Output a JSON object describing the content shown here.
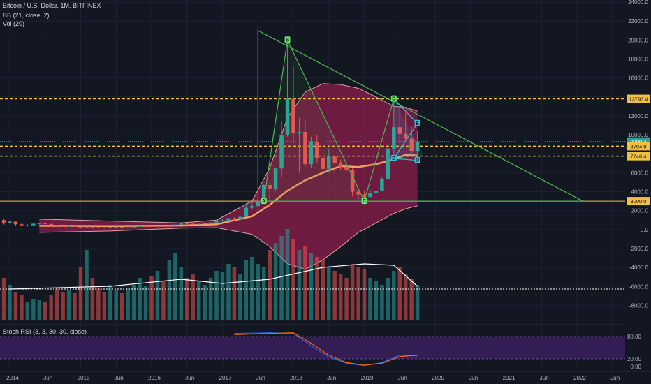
{
  "legend": {
    "symbol": "Bitcoin / U.S. Dollar, 1M, BITFINEX",
    "bb": "BB (21, close, 2)",
    "vol": "Vol (20)",
    "stoch": "Stoch RSI (3, 3, 30, 30, close)"
  },
  "colors": {
    "background": "#131722",
    "up": "#26a69a",
    "down": "#ef5350",
    "bb_fill": "#8e1e4d",
    "basis": "#f0a060",
    "triangle": "#4caf50",
    "wedge": "#26c6da",
    "level": "#f0c040",
    "stoch_bg": "#3a1f5d"
  },
  "chart_data": {
    "type": "candlestick",
    "price_axis": {
      "ticks": [
        "24000.0",
        "22000.0",
        "20000.0",
        "18000.0",
        "16000.0",
        "14000.0",
        "12000.0",
        "10000.0",
        "8000.0",
        "6000.0",
        "4000.0",
        "2000.0",
        "0.0",
        "-2000.0",
        "-4000.0",
        "-6000.0",
        "-8000.0"
      ],
      "ylim": [
        -9000,
        24000
      ]
    },
    "time_axis": [
      "2014",
      "Jun",
      "2015",
      "Jun",
      "2016",
      "Jun",
      "2017",
      "Jun",
      "2018",
      "Jun",
      "2019",
      "Jun",
      "2020",
      "Jun",
      "2021",
      "Jun",
      "2022",
      "Jun"
    ],
    "price_tags": [
      {
        "label": "13793.4",
        "value": 13793.4,
        "color": "#f0c040",
        "text_color": "#131722"
      },
      {
        "label": "9290.4",
        "value": 9290.4,
        "color": "#26a69a",
        "text_color": "#ffffff"
      },
      {
        "label": "8794.9",
        "value": 8794.9,
        "color": "#f0c040",
        "text_color": "#131722"
      },
      {
        "label": "7746.4",
        "value": 7746.4,
        "color": "#f0c040",
        "text_color": "#131722"
      },
      {
        "label": "3000.0",
        "value": 3000.0,
        "color": "#f0c040",
        "text_color": "#131722"
      }
    ],
    "horizontal_levels": [
      {
        "value": 13793.4,
        "style": "dashed"
      },
      {
        "value": 8794.9,
        "style": "dashed"
      },
      {
        "value": 7746.4,
        "style": "dashed"
      },
      {
        "value": 3000.0,
        "style": "solid"
      }
    ],
    "candles": [
      {
        "t": "2013-11",
        "o": 200,
        "h": 1200,
        "l": 180,
        "c": 1000
      },
      {
        "t": "2013-12",
        "o": 1000,
        "h": 1150,
        "l": 520,
        "c": 730
      },
      {
        "t": "2014-01",
        "o": 730,
        "h": 1000,
        "l": 750,
        "c": 840
      },
      {
        "t": "2014-02",
        "o": 840,
        "h": 850,
        "l": 400,
        "c": 560
      },
      {
        "t": "2014-03",
        "o": 560,
        "h": 720,
        "l": 440,
        "c": 450
      },
      {
        "t": "2014-04",
        "o": 450,
        "h": 550,
        "l": 340,
        "c": 450
      },
      {
        "t": "2014-05",
        "o": 450,
        "h": 630,
        "l": 420,
        "c": 620
      },
      {
        "t": "2014-06",
        "o": 620,
        "h": 680,
        "l": 530,
        "c": 640
      },
      {
        "t": "2014-07",
        "o": 640,
        "h": 660,
        "l": 560,
        "c": 590
      },
      {
        "t": "2014-08",
        "o": 590,
        "h": 600,
        "l": 430,
        "c": 480
      },
      {
        "t": "2014-09",
        "o": 480,
        "h": 500,
        "l": 370,
        "c": 390
      },
      {
        "t": "2014-10",
        "o": 390,
        "h": 420,
        "l": 280,
        "c": 340
      },
      {
        "t": "2014-11",
        "o": 340,
        "h": 460,
        "l": 320,
        "c": 380
      },
      {
        "t": "2014-12",
        "o": 380,
        "h": 390,
        "l": 300,
        "c": 320
      },
      {
        "t": "2015-01",
        "o": 320,
        "h": 320,
        "l": 160,
        "c": 220
      },
      {
        "t": "2015-02",
        "o": 220,
        "h": 270,
        "l": 210,
        "c": 255
      },
      {
        "t": "2015-03",
        "o": 255,
        "h": 300,
        "l": 240,
        "c": 245
      },
      {
        "t": "2015-04",
        "o": 245,
        "h": 265,
        "l": 210,
        "c": 235
      },
      {
        "t": "2015-05",
        "o": 235,
        "h": 245,
        "l": 228,
        "c": 230
      },
      {
        "t": "2015-06",
        "o": 230,
        "h": 270,
        "l": 220,
        "c": 265
      },
      {
        "t": "2015-07",
        "o": 265,
        "h": 320,
        "l": 255,
        "c": 285
      },
      {
        "t": "2015-08",
        "o": 285,
        "h": 285,
        "l": 200,
        "c": 230
      },
      {
        "t": "2015-09",
        "o": 230,
        "h": 240,
        "l": 225,
        "c": 236
      },
      {
        "t": "2015-10",
        "o": 236,
        "h": 330,
        "l": 235,
        "c": 315
      },
      {
        "t": "2015-11",
        "o": 315,
        "h": 500,
        "l": 300,
        "c": 378
      },
      {
        "t": "2015-12",
        "o": 378,
        "h": 470,
        "l": 350,
        "c": 430
      },
      {
        "t": "2016-01",
        "o": 430,
        "h": 460,
        "l": 360,
        "c": 370
      },
      {
        "t": "2016-02",
        "o": 370,
        "h": 440,
        "l": 365,
        "c": 437
      },
      {
        "t": "2016-03",
        "o": 437,
        "h": 440,
        "l": 400,
        "c": 416
      },
      {
        "t": "2016-04",
        "o": 416,
        "h": 470,
        "l": 415,
        "c": 448
      },
      {
        "t": "2016-05",
        "o": 448,
        "h": 550,
        "l": 440,
        "c": 530
      },
      {
        "t": "2016-06",
        "o": 530,
        "h": 780,
        "l": 520,
        "c": 670
      },
      {
        "t": "2016-07",
        "o": 670,
        "h": 700,
        "l": 600,
        "c": 620
      },
      {
        "t": "2016-08",
        "o": 620,
        "h": 620,
        "l": 470,
        "c": 575
      },
      {
        "t": "2016-09",
        "o": 575,
        "h": 620,
        "l": 570,
        "c": 608
      },
      {
        "t": "2016-10",
        "o": 608,
        "h": 720,
        "l": 600,
        "c": 700
      },
      {
        "t": "2016-11",
        "o": 700,
        "h": 760,
        "l": 680,
        "c": 745
      },
      {
        "t": "2016-12",
        "o": 745,
        "h": 980,
        "l": 740,
        "c": 965
      },
      {
        "t": "2017-01",
        "o": 965,
        "h": 1150,
        "l": 750,
        "c": 970
      },
      {
        "t": "2017-02",
        "o": 970,
        "h": 1210,
        "l": 940,
        "c": 1190
      },
      {
        "t": "2017-03",
        "o": 1190,
        "h": 1300,
        "l": 890,
        "c": 1080
      },
      {
        "t": "2017-04",
        "o": 1080,
        "h": 1420,
        "l": 1070,
        "c": 1350
      },
      {
        "t": "2017-05",
        "o": 1350,
        "h": 2800,
        "l": 1350,
        "c": 2300
      },
      {
        "t": "2017-06",
        "o": 2300,
        "h": 3000,
        "l": 2100,
        "c": 2480
      },
      {
        "t": "2017-07",
        "o": 2480,
        "h": 2900,
        "l": 1830,
        "c": 2870
      },
      {
        "t": "2017-08",
        "o": 2870,
        "h": 4800,
        "l": 2700,
        "c": 4700
      },
      {
        "t": "2017-09",
        "o": 4700,
        "h": 5000,
        "l": 2950,
        "c": 4340
      },
      {
        "t": "2017-10",
        "o": 4340,
        "h": 6450,
        "l": 4100,
        "c": 6450
      },
      {
        "t": "2017-11",
        "o": 6450,
        "h": 11500,
        "l": 5500,
        "c": 10000
      },
      {
        "t": "2017-12",
        "o": 10000,
        "h": 19900,
        "l": 9800,
        "c": 13800
      },
      {
        "t": "2018-01",
        "o": 13800,
        "h": 17200,
        "l": 9100,
        "c": 10200
      },
      {
        "t": "2018-02",
        "o": 10200,
        "h": 11800,
        "l": 6000,
        "c": 10300
      },
      {
        "t": "2018-03",
        "o": 10300,
        "h": 11700,
        "l": 6600,
        "c": 6900
      },
      {
        "t": "2018-04",
        "o": 6900,
        "h": 9800,
        "l": 6500,
        "c": 9200
      },
      {
        "t": "2018-05",
        "o": 9200,
        "h": 10000,
        "l": 7000,
        "c": 7500
      },
      {
        "t": "2018-06",
        "o": 7500,
        "h": 7800,
        "l": 5800,
        "c": 6400
      },
      {
        "t": "2018-07",
        "o": 6400,
        "h": 8500,
        "l": 6100,
        "c": 7700
      },
      {
        "t": "2018-08",
        "o": 7700,
        "h": 7800,
        "l": 5900,
        "c": 7000
      },
      {
        "t": "2018-09",
        "o": 7000,
        "h": 7400,
        "l": 6300,
        "c": 6600
      },
      {
        "t": "2018-10",
        "o": 6600,
        "h": 7000,
        "l": 6200,
        "c": 6300
      },
      {
        "t": "2018-11",
        "o": 6300,
        "h": 6500,
        "l": 3500,
        "c": 4000
      },
      {
        "t": "2018-12",
        "o": 4000,
        "h": 4400,
        "l": 3200,
        "c": 3700
      },
      {
        "t": "2019-01",
        "o": 3700,
        "h": 4100,
        "l": 3350,
        "c": 3430
      },
      {
        "t": "2019-02",
        "o": 3430,
        "h": 4200,
        "l": 3400,
        "c": 3820
      },
      {
        "t": "2019-03",
        "o": 3820,
        "h": 4100,
        "l": 3700,
        "c": 4100
      },
      {
        "t": "2019-04",
        "o": 4100,
        "h": 5600,
        "l": 4050,
        "c": 5350
      },
      {
        "t": "2019-05",
        "o": 5350,
        "h": 9100,
        "l": 5300,
        "c": 8550
      },
      {
        "t": "2019-06",
        "o": 8550,
        "h": 13850,
        "l": 7500,
        "c": 10800
      },
      {
        "t": "2019-07",
        "o": 10800,
        "h": 13200,
        "l": 9100,
        "c": 10100
      },
      {
        "t": "2019-08",
        "o": 10100,
        "h": 12400,
        "l": 9400,
        "c": 9600
      },
      {
        "t": "2019-09",
        "o": 9600,
        "h": 10900,
        "l": 7800,
        "c": 8300
      },
      {
        "t": "2019-10",
        "o": 8300,
        "h": 10400,
        "l": 7300,
        "c": 9290
      }
    ],
    "bollinger": {
      "basis": [
        [
          "2014-06",
          400
        ],
        [
          "2015-06",
          380
        ],
        [
          "2016-06",
          420
        ],
        [
          "2016-12",
          560
        ],
        [
          "2017-06",
          1400
        ],
        [
          "2017-09",
          2600
        ],
        [
          "2017-12",
          4100
        ],
        [
          "2018-03",
          5200
        ],
        [
          "2018-06",
          6000
        ],
        [
          "2018-09",
          6700
        ],
        [
          "2018-12",
          6600
        ],
        [
          "2019-03",
          6900
        ],
        [
          "2019-06",
          7400
        ],
        [
          "2019-08",
          7900
        ],
        [
          "2019-10",
          7800
        ]
      ],
      "upper": [
        [
          "2014-06",
          1100
        ],
        [
          "2015-06",
          900
        ],
        [
          "2016-06",
          700
        ],
        [
          "2016-12",
          1000
        ],
        [
          "2017-06",
          3000
        ],
        [
          "2017-09",
          6500
        ],
        [
          "2017-12",
          11800
        ],
        [
          "2018-03",
          14500
        ],
        [
          "2018-06",
          15400
        ],
        [
          "2018-09",
          15300
        ],
        [
          "2018-12",
          14900
        ],
        [
          "2019-03",
          14000
        ],
        [
          "2019-06",
          13000
        ],
        [
          "2019-08",
          12900
        ],
        [
          "2019-10",
          12500
        ]
      ],
      "lower": [
        [
          "2014-06",
          -300
        ],
        [
          "2015-06",
          -150
        ],
        [
          "2016-06",
          150
        ],
        [
          "2016-12",
          200
        ],
        [
          "2017-06",
          -500
        ],
        [
          "2017-09",
          -1800
        ],
        [
          "2017-12",
          -3600
        ],
        [
          "2018-03",
          -4200
        ],
        [
          "2018-06",
          -3200
        ],
        [
          "2018-09",
          -1800
        ],
        [
          "2018-12",
          -300
        ],
        [
          "2019-03",
          700
        ],
        [
          "2019-06",
          1700
        ],
        [
          "2019-08",
          2200
        ],
        [
          "2019-10",
          2500
        ]
      ]
    },
    "patterns": {
      "triangle": [
        [
          "2017-07",
          21000
        ],
        [
          "2022-02",
          3000
        ],
        [
          "2017-07",
          3000
        ]
      ],
      "zigzag": [
        {
          "label": "A",
          "t": "2017-08",
          "v": 3000
        },
        {
          "label": "B",
          "t": "2017-12",
          "v": 20000
        },
        {
          "label": "C",
          "t": "2019-01",
          "v": 3000
        },
        {
          "label": "D",
          "t": "2019-06",
          "v": 13793
        },
        {
          "label": "B",
          "t": "2019-06",
          "v": 7500
        },
        {
          "label": "E",
          "t": "2019-10",
          "v": 11200
        },
        {
          "label": "D",
          "t": "2019-10",
          "v": 7300
        }
      ],
      "wedge": [
        [
          "2019-06",
          13793
        ],
        [
          "2019-11",
          7746
        ],
        [
          "2019-06",
          7500
        ]
      ]
    },
    "volume": [
      90,
      60,
      50,
      40,
      35,
      25,
      30,
      28,
      25,
      35,
      45,
      40,
      42,
      38,
      75,
      100,
      60,
      45,
      40,
      50,
      42,
      38,
      45,
      50,
      60,
      48,
      62,
      70,
      55,
      85,
      95,
      75,
      60,
      65,
      55,
      50,
      60,
      70,
      68,
      80,
      75,
      65,
      85,
      90,
      80,
      75,
      100,
      110,
      120,
      130,
      115,
      100,
      105,
      95,
      90,
      85,
      75,
      70,
      65,
      60,
      80,
      75,
      72,
      60,
      55,
      50,
      60,
      70,
      75,
      65,
      58,
      50
    ],
    "volume_ma": [
      [
        "2014-01",
        44
      ],
      [
        "2015-06",
        48
      ],
      [
        "2016-06",
        58
      ],
      [
        "2017-01",
        52
      ],
      [
        "2017-09",
        58
      ],
      [
        "2018-06",
        75
      ],
      [
        "2019-01",
        80
      ],
      [
        "2019-06",
        78
      ],
      [
        "2019-10",
        48
      ]
    ],
    "volume_ref": 44,
    "stoch_rsi": {
      "ticks": [
        "80.00",
        "20.00",
        "0.00"
      ],
      "k": [
        [
          "2017-03",
          88
        ],
        [
          "2017-09",
          90
        ],
        [
          "2018-01",
          88
        ],
        [
          "2018-04",
          55
        ],
        [
          "2018-07",
          25
        ],
        [
          "2018-10",
          8
        ],
        [
          "2019-01",
          2
        ],
        [
          "2019-04",
          10
        ],
        [
          "2019-07",
          30
        ],
        [
          "2019-10",
          28
        ]
      ],
      "d": [
        [
          "2017-03",
          85
        ],
        [
          "2017-09",
          88
        ],
        [
          "2018-01",
          90
        ],
        [
          "2018-04",
          62
        ],
        [
          "2018-07",
          30
        ],
        [
          "2018-10",
          10
        ],
        [
          "2019-01",
          3
        ],
        [
          "2019-04",
          8
        ],
        [
          "2019-07",
          26
        ],
        [
          "2019-10",
          30
        ]
      ]
    }
  }
}
